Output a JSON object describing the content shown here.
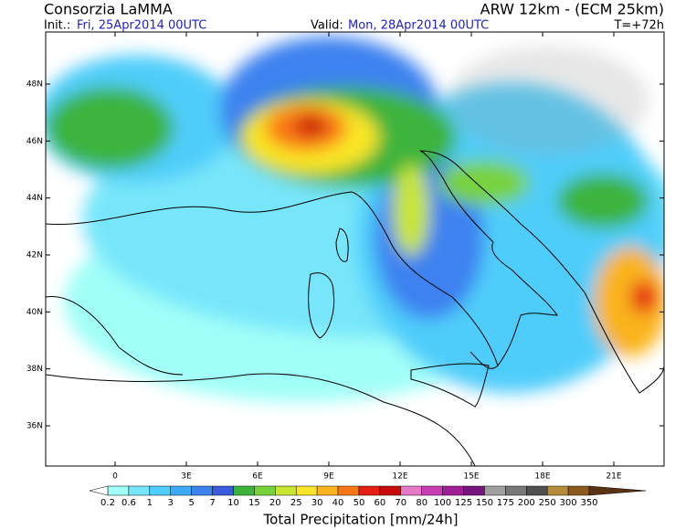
{
  "header": {
    "org": "Consorzia LaMMA",
    "model": "ARW 12km - (ECM 25km)",
    "init_label": "Init.:",
    "init": "Fri, 25Apr2014 00UTC",
    "valid_label": "Valid:",
    "valid": "Mon, 28Apr2014 00UTC",
    "lead": "T=+72h"
  },
  "map": {
    "lat_ticks": [
      {
        "value": 48,
        "label": "48N"
      },
      {
        "value": 46,
        "label": "46N"
      },
      {
        "value": 44,
        "label": "44N"
      },
      {
        "value": 42,
        "label": "42N"
      },
      {
        "value": 40,
        "label": "40N"
      },
      {
        "value": 38,
        "label": "38N"
      },
      {
        "value": 36,
        "label": "36N"
      }
    ],
    "lon_ticks": [
      0,
      {
        "value": 3,
        "label": "3E"
      },
      {
        "value": 6,
        "label": "6E"
      },
      {
        "value": 9,
        "label": "9E"
      },
      {
        "value": 12,
        "label": "12E"
      },
      {
        "value": 15,
        "label": "15E"
      },
      {
        "value": 18,
        "label": "18E"
      },
      {
        "value": 21,
        "label": "21E"
      }
    ]
  },
  "colorbar": {
    "title": "Total Precipitation [mm/24h]",
    "levels": [
      0.2,
      0.6,
      1,
      3,
      5,
      7,
      10,
      15,
      20,
      25,
      30,
      40,
      50,
      60,
      70,
      80,
      100,
      125,
      150,
      175,
      200,
      250,
      300,
      350
    ],
    "colors": [
      "#ffffff",
      "#a0fff8",
      "#78e6fa",
      "#50cdfa",
      "#3caaf5",
      "#3c82f0",
      "#3c5adc",
      "#3cb43c",
      "#78d23c",
      "#c8e632",
      "#fae628",
      "#fab41e",
      "#fa7814",
      "#e61e14",
      "#c80a0a",
      "#e678c8",
      "#c83cb4",
      "#a01e96",
      "#78147d",
      "#a0a0a0",
      "#787878",
      "#505050",
      "#b48c3c",
      "#8c5a1e",
      "#5a3214"
    ]
  }
}
